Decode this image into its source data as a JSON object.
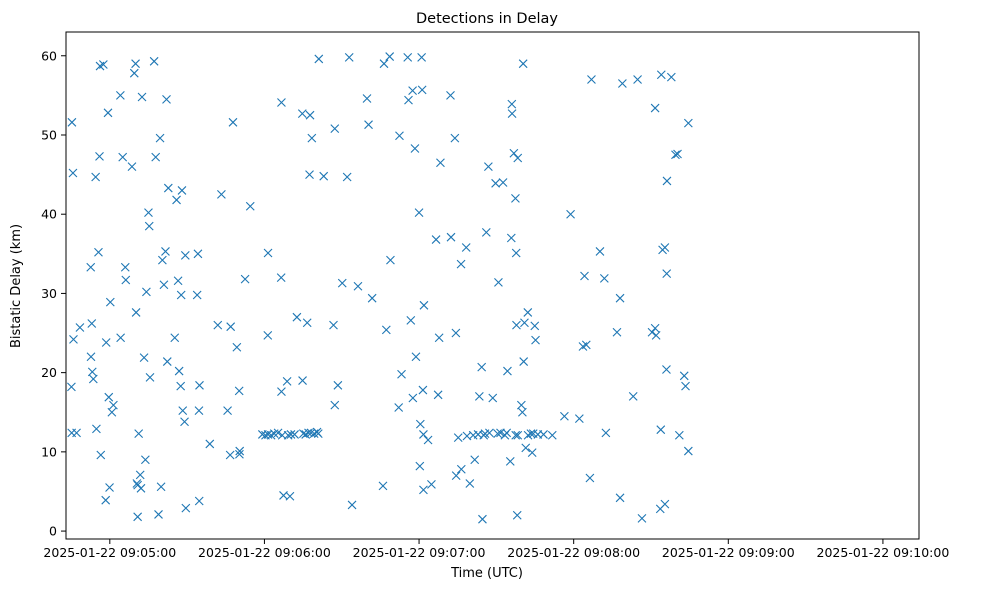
{
  "chart_data": {
    "type": "scatter",
    "title": "Detections in Delay",
    "xlabel": "Time (UTC)",
    "ylabel": "Bistatic Delay (km)",
    "marker": "x",
    "color": "#1f77b4",
    "xlim_seconds": [
      -17,
      314
    ],
    "ylim": [
      -1,
      63
    ],
    "x_origin": "2025-01-22 09:05:00",
    "x_ticks": [
      {
        "t": 0,
        "label": "2025-01-22 09:05:00"
      },
      {
        "t": 60,
        "label": "2025-01-22 09:06:00"
      },
      {
        "t": 120,
        "label": "2025-01-22 09:07:00"
      },
      {
        "t": 180,
        "label": "2025-01-22 09:08:00"
      },
      {
        "t": 240,
        "label": "2025-01-22 09:09:00"
      },
      {
        "t": 300,
        "label": "2025-01-22 09:10:00"
      }
    ],
    "y_ticks": [
      0,
      10,
      20,
      30,
      40,
      50,
      60
    ],
    "points_t_km": [
      [
        -14.7,
        51.6
      ],
      [
        -14.3,
        45.2
      ],
      [
        -14.9,
        18.2
      ],
      [
        -14.8,
        12.4
      ],
      [
        -14.1,
        24.2
      ],
      [
        -12.9,
        12.4
      ],
      [
        -11.6,
        25.7
      ],
      [
        -7.4,
        33.3
      ],
      [
        -7.3,
        22.0
      ],
      [
        -7.0,
        26.2
      ],
      [
        -6.8,
        20.1
      ],
      [
        -6.4,
        19.2
      ],
      [
        -5.5,
        44.7
      ],
      [
        -5.2,
        12.9
      ],
      [
        -4.4,
        35.2
      ],
      [
        -4.0,
        47.3
      ],
      [
        -3.8,
        58.7
      ],
      [
        -3.5,
        9.6
      ],
      [
        -2.5,
        58.9
      ],
      [
        -1.6,
        3.9
      ],
      [
        -1.4,
        23.8
      ],
      [
        -0.7,
        52.8
      ],
      [
        -0.4,
        16.9
      ],
      [
        -0.1,
        5.5
      ],
      [
        0.2,
        28.9
      ],
      [
        0.8,
        15.0
      ],
      [
        1.4,
        15.9
      ],
      [
        4.1,
        55.0
      ],
      [
        4.2,
        24.4
      ],
      [
        5.0,
        47.2
      ],
      [
        6.0,
        33.3
      ],
      [
        6.2,
        31.7
      ],
      [
        8.6,
        46.0
      ],
      [
        9.5,
        57.8
      ],
      [
        10.0,
        59.0
      ],
      [
        10.2,
        27.6
      ],
      [
        10.5,
        6.0
      ],
      [
        10.8,
        1.8
      ],
      [
        10.8,
        5.8
      ],
      [
        11.2,
        12.3
      ],
      [
        11.8,
        7.1
      ],
      [
        12.1,
        5.4
      ],
      [
        12.5,
        54.8
      ],
      [
        13.3,
        21.9
      ],
      [
        13.8,
        9.0
      ],
      [
        14.2,
        30.2
      ],
      [
        15.0,
        40.2
      ],
      [
        15.3,
        38.5
      ],
      [
        15.6,
        19.4
      ],
      [
        17.2,
        59.3
      ],
      [
        17.8,
        47.2
      ],
      [
        19.5,
        49.6
      ],
      [
        19.9,
        5.6
      ],
      [
        20.4,
        34.2
      ],
      [
        21.0,
        31.1
      ],
      [
        21.6,
        35.3
      ],
      [
        22.0,
        54.5
      ],
      [
        22.3,
        21.4
      ],
      [
        22.7,
        43.3
      ],
      [
        18.9,
        2.1
      ],
      [
        25.2,
        24.4
      ],
      [
        25.9,
        41.8
      ],
      [
        26.5,
        31.6
      ],
      [
        26.9,
        20.2
      ],
      [
        27.5,
        18.3
      ],
      [
        27.7,
        29.8
      ],
      [
        28.0,
        43.0
      ],
      [
        28.3,
        15.2
      ],
      [
        29.0,
        13.8
      ],
      [
        29.3,
        34.8
      ],
      [
        29.5,
        2.9
      ],
      [
        33.9,
        29.8
      ],
      [
        34.2,
        35.0
      ],
      [
        34.6,
        15.2
      ],
      [
        34.8,
        18.4
      ],
      [
        34.7,
        3.8
      ],
      [
        38.8,
        11.0
      ],
      [
        41.9,
        26.0
      ],
      [
        43.3,
        42.5
      ],
      [
        45.7,
        15.2
      ],
      [
        46.9,
        25.8
      ],
      [
        46.7,
        9.6
      ],
      [
        47.8,
        51.6
      ],
      [
        49.3,
        23.2
      ],
      [
        50.2,
        17.7
      ],
      [
        50.4,
        10.1
      ],
      [
        50.3,
        9.7
      ],
      [
        52.5,
        31.8
      ],
      [
        54.5,
        41.0
      ],
      [
        61.4,
        35.1
      ],
      [
        61.3,
        24.7
      ],
      [
        59.2,
        12.2
      ],
      [
        60.4,
        12.1
      ],
      [
        61.4,
        12.2
      ],
      [
        62.6,
        12.1
      ],
      [
        63.8,
        12.3
      ],
      [
        65.3,
        12.4
      ],
      [
        66.9,
        12.1
      ],
      [
        66.6,
        54.1
      ],
      [
        66.6,
        17.6
      ],
      [
        66.5,
        32.0
      ],
      [
        67.4,
        4.5
      ],
      [
        68.8,
        18.9
      ],
      [
        69.2,
        12.1
      ],
      [
        69.9,
        4.4
      ],
      [
        70.3,
        12.2
      ],
      [
        71.7,
        12.2
      ],
      [
        72.6,
        27.0
      ],
      [
        74.7,
        52.7
      ],
      [
        74.8,
        19.0
      ],
      [
        75.1,
        12.3
      ],
      [
        76.0,
        12.2
      ],
      [
        76.6,
        26.3
      ],
      [
        77.1,
        12.4
      ],
      [
        77.7,
        52.5
      ],
      [
        77.5,
        45.0
      ],
      [
        78.1,
        12.4
      ],
      [
        78.4,
        49.6
      ],
      [
        79.3,
        12.3
      ],
      [
        80.4,
        12.5
      ],
      [
        80.9,
        12.3
      ],
      [
        81.1,
        59.6
      ],
      [
        83.0,
        44.8
      ],
      [
        86.8,
        26.0
      ],
      [
        87.3,
        50.8
      ],
      [
        87.3,
        15.9
      ],
      [
        88.5,
        18.4
      ],
      [
        90.2,
        31.3
      ],
      [
        92.1,
        44.7
      ],
      [
        92.9,
        59.8
      ],
      [
        94.0,
        3.3
      ],
      [
        96.3,
        30.9
      ],
      [
        99.8,
        54.6
      ],
      [
        100.4,
        51.3
      ],
      [
        101.8,
        29.4
      ],
      [
        106.0,
        5.7
      ],
      [
        106.4,
        59.0
      ],
      [
        107.3,
        25.4
      ],
      [
        108.6,
        59.9
      ],
      [
        108.9,
        34.2
      ],
      [
        112.4,
        49.9
      ],
      [
        112.1,
        15.6
      ],
      [
        113.2,
        19.8
      ],
      [
        115.6,
        59.8
      ],
      [
        115.9,
        54.4
      ],
      [
        116.8,
        26.6
      ],
      [
        117.6,
        16.8
      ],
      [
        117.5,
        55.6
      ],
      [
        118.4,
        48.3
      ],
      [
        118.8,
        22.0
      ],
      [
        120.0,
        40.2
      ],
      [
        120.5,
        13.5
      ],
      [
        120.3,
        8.2
      ],
      [
        121.2,
        55.7
      ],
      [
        121.0,
        59.8
      ],
      [
        121.5,
        17.8
      ],
      [
        121.7,
        5.2
      ],
      [
        121.7,
        12.2
      ],
      [
        121.9,
        28.5
      ],
      [
        123.5,
        11.5
      ],
      [
        124.8,
        5.9
      ],
      [
        126.6,
        36.8
      ],
      [
        127.4,
        17.2
      ],
      [
        127.8,
        24.4
      ],
      [
        128.3,
        46.5
      ],
      [
        132.2,
        55.0
      ],
      [
        132.4,
        37.1
      ],
      [
        133.9,
        49.6
      ],
      [
        134.3,
        25.0
      ],
      [
        135.2,
        11.8
      ],
      [
        136.3,
        33.7
      ],
      [
        136.4,
        7.8
      ],
      [
        134.4,
        7.0
      ],
      [
        138.3,
        35.8
      ],
      [
        138.6,
        12.0
      ],
      [
        139.7,
        6.0
      ],
      [
        141.0,
        12.1
      ],
      [
        141.6,
        9.0
      ],
      [
        142.9,
        12.2
      ],
      [
        143.4,
        17.0
      ],
      [
        144.3,
        20.7
      ],
      [
        144.6,
        1.5
      ],
      [
        145.1,
        12.1
      ],
      [
        145.6,
        12.3
      ],
      [
        146.1,
        37.7
      ],
      [
        146.9,
        46.0
      ],
      [
        147.3,
        12.4
      ],
      [
        148.6,
        16.8
      ],
      [
        149.7,
        43.9
      ],
      [
        150.5,
        12.3
      ],
      [
        150.8,
        31.4
      ],
      [
        151.6,
        12.4
      ],
      [
        152.6,
        44.0
      ],
      [
        153.3,
        12.1
      ],
      [
        154.0,
        12.4
      ],
      [
        154.3,
        20.2
      ],
      [
        155.4,
        8.8
      ],
      [
        155.8,
        37.0
      ],
      [
        156.0,
        53.9
      ],
      [
        156.1,
        52.7
      ],
      [
        156.8,
        47.7
      ],
      [
        157.4,
        42.0
      ],
      [
        157.7,
        35.1
      ],
      [
        157.8,
        26.0
      ],
      [
        157.5,
        12.1
      ],
      [
        158.3,
        47.1
      ],
      [
        158.3,
        12.1
      ],
      [
        158.1,
        2.0
      ],
      [
        159.7,
        15.9
      ],
      [
        160.1,
        15.0
      ],
      [
        160.4,
        59.0
      ],
      [
        160.6,
        21.4
      ],
      [
        160.9,
        26.3
      ],
      [
        161.4,
        10.5
      ],
      [
        162.2,
        27.6
      ],
      [
        162.3,
        12.1
      ],
      [
        163.4,
        12.3
      ],
      [
        163.9,
        9.9
      ],
      [
        164.3,
        12.3
      ],
      [
        164.9,
        25.9
      ],
      [
        165.2,
        24.1
      ],
      [
        166.1,
        12.2
      ],
      [
        168.3,
        12.2
      ],
      [
        171.7,
        12.1
      ],
      [
        176.4,
        14.5
      ],
      [
        178.8,
        40.0
      ],
      [
        182.2,
        14.2
      ],
      [
        183.6,
        23.3
      ],
      [
        184.2,
        32.2
      ],
      [
        184.9,
        23.5
      ],
      [
        186.3,
        6.7
      ],
      [
        186.9,
        57.0
      ],
      [
        190.2,
        35.3
      ],
      [
        191.9,
        31.9
      ],
      [
        192.5,
        12.4
      ],
      [
        196.8,
        25.1
      ],
      [
        198.0,
        29.4
      ],
      [
        198.0,
        4.2
      ],
      [
        198.9,
        56.5
      ],
      [
        203.1,
        17.0
      ],
      [
        204.8,
        57.0
      ],
      [
        206.5,
        1.6
      ],
      [
        210.4,
        25.1
      ],
      [
        211.6,
        25.6
      ],
      [
        211.6,
        53.4
      ],
      [
        212.0,
        24.7
      ],
      [
        213.6,
        2.8
      ],
      [
        213.8,
        12.8
      ],
      [
        214.0,
        57.6
      ],
      [
        214.5,
        35.5
      ],
      [
        215.4,
        3.4
      ],
      [
        215.4,
        35.8
      ],
      [
        216.2,
        44.2
      ],
      [
        216.1,
        32.5
      ],
      [
        216.0,
        20.4
      ],
      [
        217.9,
        57.3
      ],
      [
        219.5,
        47.5
      ],
      [
        220.3,
        47.6
      ],
      [
        221.0,
        12.1
      ],
      [
        222.9,
        19.6
      ],
      [
        223.4,
        18.3
      ],
      [
        224.5,
        10.1
      ],
      [
        224.5,
        51.5
      ]
    ]
  }
}
